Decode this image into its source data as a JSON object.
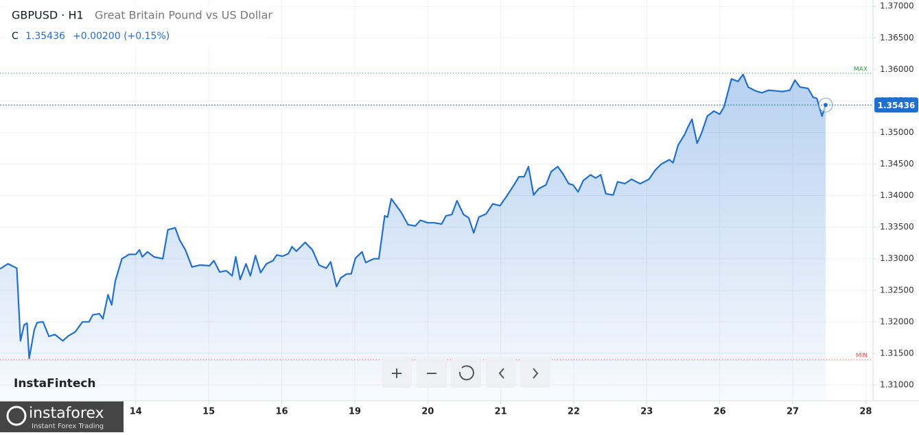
{
  "header": {
    "symbol": "GBPUSD · H1",
    "description": "Great Britain Pound vs US Dollar",
    "close_prefix": "C",
    "change": "+0.00200 (+0.15%)"
  },
  "watermark": "InstaFintech",
  "logo": {
    "name": "instaforex",
    "tagline": "Instant Forex Trading"
  },
  "chart_data": {
    "type": "area",
    "color": "#1f6fd1",
    "close": 1.35436,
    "max_line": {
      "label": "MAX",
      "value": 1.3594,
      "color": "#2e9e48"
    },
    "min_line": {
      "label": "MIN",
      "value": 1.314,
      "color": "#e0565b"
    },
    "x": [
      -1.86,
      -1.75,
      -1.63,
      -1.58,
      -1.53,
      -1.49,
      -1.46,
      -1.39,
      -1.35,
      -1.27,
      -1.19,
      -1.11,
      -1.0,
      -0.92,
      -0.83,
      -0.73,
      -0.64,
      -0.59,
      -0.5,
      -0.45,
      -0.38,
      -0.33,
      -0.28,
      -0.19,
      -0.09,
      0,
      0.05,
      0.09,
      0.16,
      0.25,
      0.37,
      0.44,
      0.54,
      0.6,
      0.68,
      0.77,
      0.88,
      1.01,
      1.07,
      1.15,
      1.24,
      1.32,
      1.37,
      1.43,
      1.51,
      1.57,
      1.64,
      1.71,
      1.79,
      1.88,
      1.93,
      2.01,
      2.09,
      2.14,
      2.2,
      2.32,
      2.42,
      2.51,
      2.61,
      2.67,
      2.75,
      2.81,
      2.89,
      2.95,
      3.01,
      3.1,
      3.15,
      3.26,
      3.33,
      3.41,
      3.45,
      3.5,
      3.57,
      3.64,
      3.73,
      3.83,
      3.9,
      4.0,
      4.09,
      4.19,
      4.25,
      4.33,
      4.4,
      4.49,
      4.56,
      4.63,
      4.7,
      4.8,
      4.89,
      4.99,
      5.08,
      5.17,
      5.25,
      5.32,
      5.38,
      5.45,
      5.52,
      5.62,
      5.69,
      5.78,
      5.85,
      5.93,
      5.99,
      6.06,
      6.13,
      6.23,
      6.3,
      6.37,
      6.44,
      6.54,
      6.6,
      6.7,
      6.79,
      6.91,
      7.03,
      7.12,
      7.2,
      7.31,
      7.36,
      7.43,
      7.52,
      7.57,
      7.62,
      7.69,
      7.75,
      7.83,
      7.92,
      8.0,
      8.06,
      8.16,
      8.25,
      8.32,
      8.39,
      8.49,
      8.58,
      8.67,
      8.77,
      8.86,
      8.96,
      9.03,
      9.1,
      9.21,
      9.28,
      9.33,
      9.4,
      9.45
    ],
    "values": [
      1.3284,
      1.3292,
      1.3285,
      1.317,
      1.3195,
      1.3198,
      1.3142,
      1.3188,
      1.3199,
      1.32,
      1.3177,
      1.318,
      1.317,
      1.3178,
      1.3184,
      1.32,
      1.32,
      1.3211,
      1.3213,
      1.3205,
      1.3243,
      1.3227,
      1.3265,
      1.33,
      1.3307,
      1.3307,
      1.3314,
      1.3303,
      1.3311,
      1.3303,
      1.33,
      1.3346,
      1.3349,
      1.333,
      1.3314,
      1.3287,
      1.329,
      1.3289,
      1.3297,
      1.3279,
      1.3281,
      1.3273,
      1.3303,
      1.3267,
      1.3292,
      1.3273,
      1.3305,
      1.3278,
      1.3292,
      1.3297,
      1.3306,
      1.3304,
      1.3308,
      1.3319,
      1.3312,
      1.3326,
      1.3314,
      1.329,
      1.3285,
      1.3295,
      1.3256,
      1.327,
      1.3276,
      1.3276,
      1.3301,
      1.3311,
      1.3294,
      1.33,
      1.33,
      1.3368,
      1.3366,
      1.3395,
      1.3384,
      1.3373,
      1.3354,
      1.3352,
      1.3361,
      1.3357,
      1.3357,
      1.3355,
      1.3368,
      1.337,
      1.3392,
      1.337,
      1.3365,
      1.3341,
      1.3366,
      1.3371,
      1.3387,
      1.3384,
      1.3399,
      1.3415,
      1.343,
      1.343,
      1.3446,
      1.3401,
      1.3411,
      1.3417,
      1.3438,
      1.3446,
      1.3435,
      1.3419,
      1.3417,
      1.3406,
      1.3424,
      1.3433,
      1.3428,
      1.3433,
      1.3403,
      1.3401,
      1.3422,
      1.3419,
      1.3426,
      1.3419,
      1.3426,
      1.3441,
      1.345,
      1.3457,
      1.3452,
      1.348,
      1.3497,
      1.351,
      1.3521,
      1.3483,
      1.3499,
      1.3526,
      1.3534,
      1.3529,
      1.3541,
      1.3585,
      1.3581,
      1.3592,
      1.3572,
      1.3566,
      1.3563,
      1.3567,
      1.3566,
      1.3565,
      1.3567,
      1.3583,
      1.3572,
      1.357,
      1.3556,
      1.3554,
      1.3526,
      1.35436
    ],
    "xlim": [
      -1.86,
      10.1
    ],
    "xticks": [
      {
        "value": 0,
        "label": "14"
      },
      {
        "value": 1,
        "label": "15"
      },
      {
        "value": 2,
        "label": "16"
      },
      {
        "value": 3,
        "label": "19"
      },
      {
        "value": 4,
        "label": "20"
      },
      {
        "value": 5,
        "label": "21"
      },
      {
        "value": 6,
        "label": "22"
      },
      {
        "value": 7,
        "label": "23"
      },
      {
        "value": 8,
        "label": "26"
      },
      {
        "value": 9,
        "label": "27"
      },
      {
        "value": 10,
        "label": "28"
      }
    ],
    "ylim": [
      1.3075,
      1.371
    ],
    "yticks": [
      {
        "value": 1.31,
        "label": "1.31000"
      },
      {
        "value": 1.315,
        "label": "1.31500"
      },
      {
        "value": 1.32,
        "label": "1.32000"
      },
      {
        "value": 1.325,
        "label": "1.32500"
      },
      {
        "value": 1.33,
        "label": "1.33000"
      },
      {
        "value": 1.335,
        "label": "1.33500"
      },
      {
        "value": 1.34,
        "label": "1.34000"
      },
      {
        "value": 1.345,
        "label": "1.34500"
      },
      {
        "value": 1.35,
        "label": "1.35000"
      },
      {
        "value": 1.355,
        "label": "1.35500"
      },
      {
        "value": 1.36,
        "label": "1.36000"
      },
      {
        "value": 1.365,
        "label": "1.36500"
      },
      {
        "value": 1.37,
        "label": "1.37000"
      }
    ],
    "grid": true
  }
}
